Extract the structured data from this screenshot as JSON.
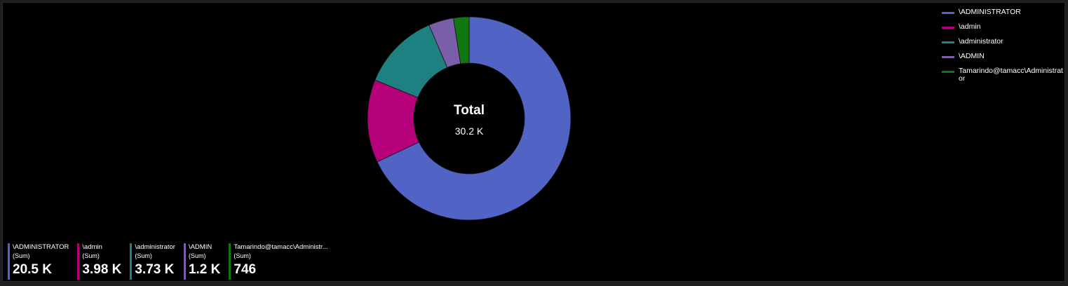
{
  "chart_data": {
    "type": "pie",
    "donut": true,
    "center": {
      "title": "Total",
      "value": "30.2 K"
    },
    "series": [
      {
        "name": "\\ADMINISTRATOR",
        "value": 20500,
        "display": "20.5 K",
        "color": "#5163c4"
      },
      {
        "name": "\\admin",
        "value": 3980,
        "display": "3.98 K",
        "color": "#b6007a"
      },
      {
        "name": "\\administrator",
        "value": 3730,
        "display": "3.73 K",
        "color": "#1e8080"
      },
      {
        "name": "\\ADMIN",
        "value": 1200,
        "display": "1.2 K",
        "color": "#7a5ea8"
      },
      {
        "name": "Tamarindo@tamacc\\Administrator",
        "value": 746,
        "display": "746",
        "color": "#117811"
      }
    ],
    "legend_position": "top-right"
  },
  "tiles": [
    {
      "name": "\\ADMINISTRATOR",
      "aggregation": "(Sum)",
      "value": "20.5 K",
      "color": "#5163c4"
    },
    {
      "name": "\\admin",
      "aggregation": "(Sum)",
      "value": "3.98 K",
      "color": "#b6007a"
    },
    {
      "name": "\\administrator",
      "aggregation": "(Sum)",
      "value": "3.73 K",
      "color": "#1e8080"
    },
    {
      "name": "\\ADMIN",
      "aggregation": "(Sum)",
      "value": "1.2 K",
      "color": "#7a5ea8"
    },
    {
      "name": "Tamarindo@tamacc\\Administr...",
      "aggregation": "(Sum)",
      "value": "746",
      "color": "#117811"
    }
  ]
}
